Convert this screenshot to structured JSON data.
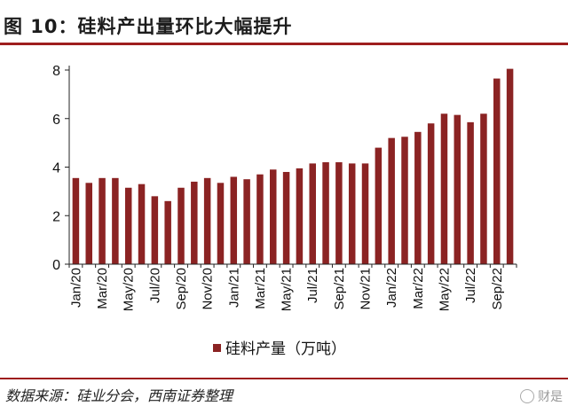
{
  "header": {
    "title": "图 10：硅料产出量环比大幅提升"
  },
  "footer": {
    "source": "数据来源：硅业分会，西南证券整理",
    "watermark": "财是"
  },
  "colors": {
    "bar": "#8b2323",
    "accent": "#9e1d1d"
  },
  "chart_data": {
    "type": "bar",
    "title": "图 10：硅料产出量环比大幅提升",
    "xlabel": "",
    "ylabel": "",
    "ylim": [
      0,
      8
    ],
    "yticks": [
      0,
      2,
      4,
      6,
      8
    ],
    "categories": [
      "Jan/20",
      "Feb/20",
      "Mar/20",
      "Apr/20",
      "May/20",
      "Jun/20",
      "Jul/20",
      "Aug/20",
      "Sep/20",
      "Oct/20",
      "Nov/20",
      "Dec/20",
      "Jan/21",
      "Feb/21",
      "Mar/21",
      "Apr/21",
      "May/21",
      "Jun/21",
      "Jul/21",
      "Aug/21",
      "Sep/21",
      "Oct/21",
      "Nov/21",
      "Dec/21",
      "Jan/22",
      "Feb/22",
      "Mar/22",
      "Apr/22",
      "May/22",
      "Jun/22",
      "Jul/22",
      "Aug/22",
      "Sep/22",
      "Oct/22"
    ],
    "xtick_labels": [
      "Jan/20",
      "Mar/20",
      "May/20",
      "Jul/20",
      "Sep/20",
      "Nov/20",
      "Jan/21",
      "Mar/21",
      "May/21",
      "Jul/21",
      "Sep/21",
      "Nov/21",
      "Jan/22",
      "Mar/22",
      "May/22",
      "Jul/22",
      "Sep/22"
    ],
    "series": [
      {
        "name": "硅料产量（万吨）",
        "values": [
          3.55,
          3.35,
          3.55,
          3.55,
          3.15,
          3.3,
          2.8,
          2.6,
          3.15,
          3.4,
          3.55,
          3.35,
          3.6,
          3.5,
          3.7,
          3.9,
          3.8,
          3.95,
          4.15,
          4.2,
          4.2,
          4.15,
          4.15,
          4.8,
          5.2,
          5.25,
          5.45,
          5.8,
          6.2,
          6.15,
          5.85,
          6.2,
          7.65,
          8.05
        ]
      }
    ],
    "legend": "bottom-center"
  }
}
